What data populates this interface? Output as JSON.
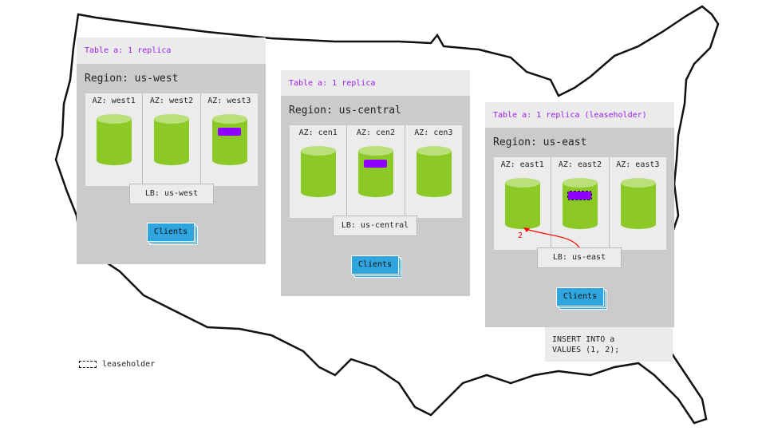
{
  "regions": [
    {
      "table_label": "Table a: 1 replica",
      "region_label": "Region: us-west",
      "azs": [
        "AZ: west1",
        "AZ: west2",
        "AZ: west3"
      ],
      "lb": "LB: us-west",
      "clients": "Clients"
    },
    {
      "table_label": "Table a: 1 replica",
      "region_label": "Region: us-central",
      "azs": [
        "AZ: cen1",
        "AZ: cen2",
        "AZ: cen3"
      ],
      "lb": "LB: us-central",
      "clients": "Clients"
    },
    {
      "table_label": "Table a: 1 replica (leaseholder)",
      "region_label": "Region: us-east",
      "azs": [
        "AZ: east1",
        "AZ: east2",
        "AZ: east3"
      ],
      "lb": "LB: us-east",
      "clients": "Clients"
    }
  ],
  "arrow_label": "2",
  "sql": "INSERT INTO a\nVALUES (1, 2);",
  "legend": {
    "label": "leaseholder"
  },
  "colors": {
    "replica": "#8f00ff",
    "node": "#8cc926",
    "clients": "#2fa5df",
    "arrow": "#ff0000",
    "title_text": "#9b1fe8"
  }
}
